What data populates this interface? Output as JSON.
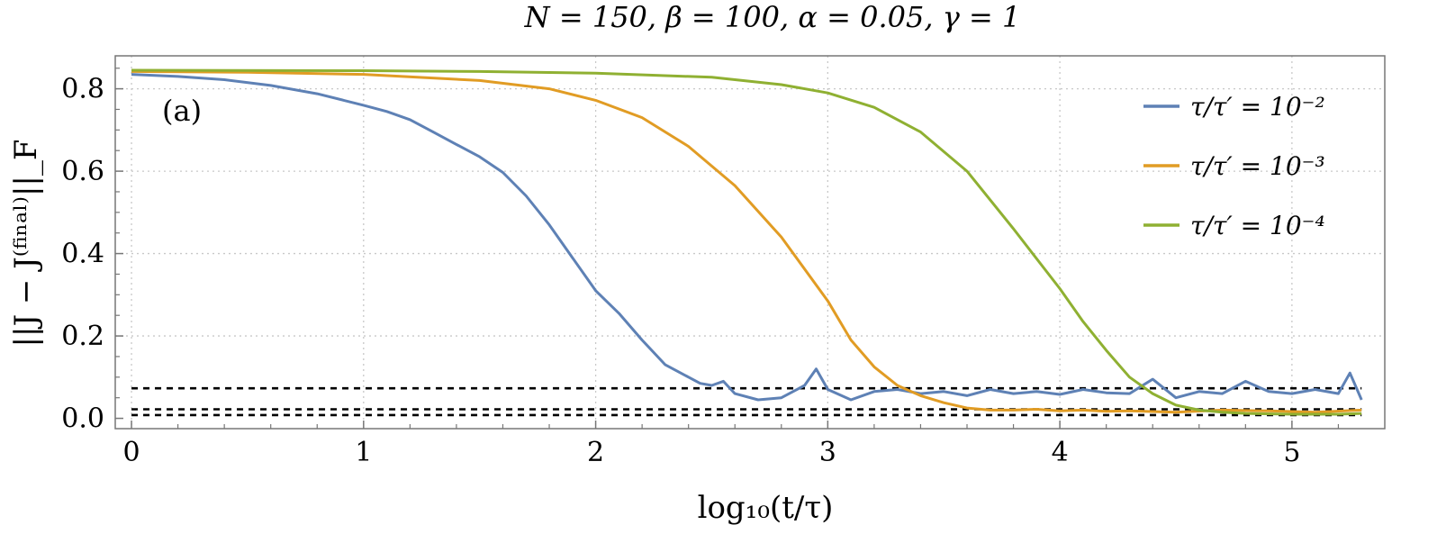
{
  "chart_data": {
    "type": "line",
    "title": "N = 150, β = 100,  α = 0.05,  γ = 1",
    "xlabel": "log₁₀(t/τ)",
    "ylabel": "||J − J⁽ᶠⁱⁿᵃˡ⁾||_F",
    "panel_label": "(a)",
    "xlim": [
      -0.07,
      5.4
    ],
    "ylim": [
      -0.025,
      0.88
    ],
    "x_ticks": [
      0,
      1,
      2,
      3,
      4,
      5
    ],
    "y_ticks": [
      0.0,
      0.2,
      0.4,
      0.6,
      0.8
    ],
    "y_tick_labels": [
      "0.0",
      "0.2",
      "0.4",
      "0.6",
      "0.8"
    ],
    "grid": true,
    "legend_placement": "top-right",
    "series": [
      {
        "name": "τ/τ′ = 10⁻²",
        "color": "#5e81b5",
        "points": [
          [
            0,
            0.835
          ],
          [
            0.2,
            0.83
          ],
          [
            0.4,
            0.822
          ],
          [
            0.6,
            0.808
          ],
          [
            0.8,
            0.788
          ],
          [
            1.0,
            0.76
          ],
          [
            1.1,
            0.745
          ],
          [
            1.2,
            0.725
          ],
          [
            1.3,
            0.695
          ],
          [
            1.4,
            0.665
          ],
          [
            1.5,
            0.635
          ],
          [
            1.6,
            0.597
          ],
          [
            1.7,
            0.54
          ],
          [
            1.8,
            0.47
          ],
          [
            1.9,
            0.39
          ],
          [
            2.0,
            0.31
          ],
          [
            2.1,
            0.255
          ],
          [
            2.2,
            0.19
          ],
          [
            2.3,
            0.13
          ],
          [
            2.4,
            0.1
          ],
          [
            2.45,
            0.085
          ],
          [
            2.5,
            0.08
          ],
          [
            2.55,
            0.09
          ],
          [
            2.6,
            0.06
          ],
          [
            2.7,
            0.045
          ],
          [
            2.8,
            0.05
          ],
          [
            2.9,
            0.08
          ],
          [
            2.95,
            0.12
          ],
          [
            3.0,
            0.07
          ],
          [
            3.1,
            0.045
          ],
          [
            3.2,
            0.065
          ],
          [
            3.3,
            0.07
          ],
          [
            3.4,
            0.06
          ],
          [
            3.5,
            0.065
          ],
          [
            3.6,
            0.055
          ],
          [
            3.7,
            0.07
          ],
          [
            3.8,
            0.06
          ],
          [
            3.9,
            0.065
          ],
          [
            4.0,
            0.058
          ],
          [
            4.1,
            0.07
          ],
          [
            4.2,
            0.062
          ],
          [
            4.3,
            0.06
          ],
          [
            4.4,
            0.095
          ],
          [
            4.5,
            0.05
          ],
          [
            4.6,
            0.065
          ],
          [
            4.7,
            0.06
          ],
          [
            4.8,
            0.09
          ],
          [
            4.9,
            0.065
          ],
          [
            5.0,
            0.06
          ],
          [
            5.1,
            0.07
          ],
          [
            5.2,
            0.06
          ],
          [
            5.25,
            0.11
          ],
          [
            5.3,
            0.045
          ]
        ]
      },
      {
        "name": "τ/τ′ = 10⁻³",
        "color": "#e19c24",
        "points": [
          [
            0,
            0.842
          ],
          [
            0.5,
            0.84
          ],
          [
            1.0,
            0.835
          ],
          [
            1.5,
            0.82
          ],
          [
            1.8,
            0.8
          ],
          [
            2.0,
            0.772
          ],
          [
            2.2,
            0.73
          ],
          [
            2.4,
            0.66
          ],
          [
            2.6,
            0.565
          ],
          [
            2.8,
            0.44
          ],
          [
            3.0,
            0.285
          ],
          [
            3.1,
            0.19
          ],
          [
            3.2,
            0.125
          ],
          [
            3.3,
            0.08
          ],
          [
            3.4,
            0.055
          ],
          [
            3.5,
            0.038
          ],
          [
            3.6,
            0.025
          ],
          [
            3.7,
            0.02
          ],
          [
            3.8,
            0.02
          ],
          [
            3.9,
            0.022
          ],
          [
            4.0,
            0.018
          ],
          [
            4.1,
            0.02
          ],
          [
            4.2,
            0.017
          ],
          [
            4.3,
            0.018
          ],
          [
            4.5,
            0.015
          ],
          [
            4.7,
            0.02
          ],
          [
            4.9,
            0.018
          ],
          [
            5.1,
            0.015
          ],
          [
            5.3,
            0.02
          ]
        ]
      },
      {
        "name": "τ/τ′ = 10⁻⁴",
        "color": "#8fb032",
        "points": [
          [
            0,
            0.845
          ],
          [
            1.0,
            0.844
          ],
          [
            1.5,
            0.842
          ],
          [
            2.0,
            0.838
          ],
          [
            2.5,
            0.828
          ],
          [
            2.8,
            0.81
          ],
          [
            3.0,
            0.79
          ],
          [
            3.2,
            0.755
          ],
          [
            3.4,
            0.695
          ],
          [
            3.6,
            0.6
          ],
          [
            3.8,
            0.46
          ],
          [
            4.0,
            0.315
          ],
          [
            4.1,
            0.235
          ],
          [
            4.2,
            0.165
          ],
          [
            4.3,
            0.1
          ],
          [
            4.4,
            0.06
          ],
          [
            4.5,
            0.032
          ],
          [
            4.6,
            0.02
          ],
          [
            4.7,
            0.015
          ],
          [
            4.8,
            0.012
          ],
          [
            5.0,
            0.01
          ],
          [
            5.2,
            0.01
          ],
          [
            5.3,
            0.012
          ]
        ]
      }
    ],
    "reference_lines": [
      {
        "y": 0.073,
        "style": "dashed",
        "color": "#000000"
      },
      {
        "y": 0.022,
        "style": "dashed",
        "color": "#000000"
      },
      {
        "y": 0.008,
        "style": "dashed",
        "color": "#000000"
      }
    ]
  }
}
